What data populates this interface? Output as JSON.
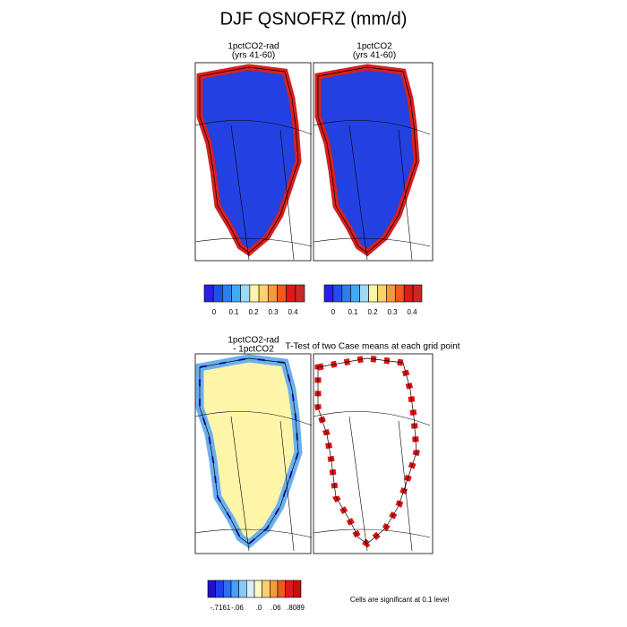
{
  "title": "DJF QSNOFRZ (mm/d)",
  "panels": [
    {
      "title": [
        "1pctCO2-rad",
        "(yrs 41-60)"
      ]
    },
    {
      "title": [
        "1pctCO2",
        "(yrs 41-60)"
      ]
    },
    {
      "title": [
        "1pctCO2-rad",
        "- 1pctCO2"
      ]
    },
    {
      "title": [
        "T-Test of two Case means at each grid point"
      ]
    }
  ],
  "colorbars": [
    {
      "labels": [
        "0",
        "0.1",
        "0.2",
        "0.3",
        "0.4"
      ]
    },
    {
      "labels": [
        "0",
        "0.1",
        "0.2",
        "0.3",
        "0.4"
      ]
    },
    {
      "labels": [
        "-.7161",
        "-.06",
        ".0",
        ".06",
        ".8089"
      ]
    }
  ],
  "note": "Cells are significant at 0.1 level"
}
